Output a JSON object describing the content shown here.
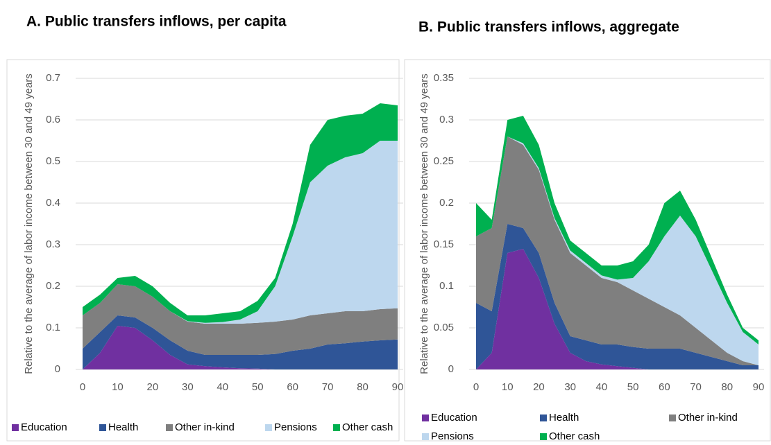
{
  "chart_data": [
    {
      "type": "stacked-area",
      "title": "A. Public transfers inflows, per capita",
      "y_label": "Relative to the average of labor income between 30 and 49 years",
      "x": [
        0,
        5,
        10,
        15,
        20,
        25,
        30,
        35,
        40,
        45,
        50,
        55,
        60,
        65,
        70,
        75,
        80,
        85,
        90
      ],
      "xlim": [
        0,
        90
      ],
      "xticks": [
        0,
        10,
        20,
        30,
        40,
        50,
        60,
        70,
        80,
        90
      ],
      "ylim": [
        0,
        0.7
      ],
      "yticks": [
        0,
        0.1,
        0.2,
        0.3,
        0.4,
        0.5,
        0.6,
        0.7
      ],
      "grid": true,
      "series": [
        {
          "name": "Education",
          "color": "#7030a0",
          "values": [
            0,
            0.04,
            0.105,
            0.1,
            0.07,
            0.035,
            0.012,
            0.008,
            0.005,
            0.003,
            0.002,
            0,
            0,
            0,
            0,
            0,
            0,
            0,
            0
          ]
        },
        {
          "name": "Health",
          "color": "#2f5597",
          "values": [
            0.05,
            0.05,
            0.025,
            0.025,
            0.03,
            0.035,
            0.033,
            0.027,
            0.03,
            0.032,
            0.033,
            0.037,
            0.045,
            0.05,
            0.06,
            0.063,
            0.067,
            0.07,
            0.072
          ]
        },
        {
          "name": "Other in-kind",
          "color": "#7f7f7f",
          "values": [
            0.08,
            0.07,
            0.075,
            0.075,
            0.075,
            0.07,
            0.07,
            0.075,
            0.075,
            0.075,
            0.077,
            0.078,
            0.075,
            0.08,
            0.075,
            0.077,
            0.073,
            0.075,
            0.075
          ]
        },
        {
          "name": "Pensions",
          "color": "#bdd7ee",
          "values": [
            0,
            0,
            0,
            0,
            0,
            0,
            0.001,
            0.002,
            0.004,
            0.01,
            0.028,
            0.085,
            0.2,
            0.32,
            0.355,
            0.37,
            0.38,
            0.405,
            0.403
          ]
        },
        {
          "name": "Other cash",
          "color": "#00b050",
          "values": [
            0.02,
            0.02,
            0.015,
            0.025,
            0.025,
            0.02,
            0.014,
            0.018,
            0.021,
            0.02,
            0.025,
            0.02,
            0.03,
            0.09,
            0.11,
            0.1,
            0.095,
            0.09,
            0.085
          ]
        }
      ]
    },
    {
      "type": "stacked-area",
      "title": "B. Public transfers inflows, aggregate",
      "y_label": "Relative to the average of labor income between 30 and 49 years",
      "x": [
        0,
        5,
        10,
        15,
        20,
        25,
        30,
        35,
        40,
        45,
        50,
        55,
        60,
        65,
        70,
        75,
        80,
        85,
        90
      ],
      "xlim": [
        0,
        90
      ],
      "xticks": [
        0,
        10,
        20,
        30,
        40,
        50,
        60,
        70,
        80,
        90
      ],
      "ylim": [
        0,
        0.35
      ],
      "yticks": [
        0,
        0.05,
        0.1,
        0.15,
        0.2,
        0.25,
        0.3,
        0.35
      ],
      "grid": true,
      "series": [
        {
          "name": "Education",
          "color": "#7030a0",
          "values": [
            0,
            0.02,
            0.14,
            0.145,
            0.11,
            0.055,
            0.02,
            0.01,
            0.006,
            0.004,
            0.002,
            0,
            0,
            0,
            0,
            0,
            0,
            0,
            0
          ]
        },
        {
          "name": "Health",
          "color": "#2f5597",
          "values": [
            0.08,
            0.05,
            0.035,
            0.025,
            0.03,
            0.025,
            0.02,
            0.025,
            0.024,
            0.026,
            0.025,
            0.025,
            0.025,
            0.025,
            0.02,
            0.015,
            0.01,
            0.005,
            0.005
          ]
        },
        {
          "name": "Other in-kind",
          "color": "#7f7f7f",
          "values": [
            0.08,
            0.1,
            0.105,
            0.1,
            0.1,
            0.1,
            0.1,
            0.09,
            0.08,
            0.075,
            0.068,
            0.06,
            0.05,
            0.04,
            0.03,
            0.02,
            0.01,
            0.005,
            0
          ]
        },
        {
          "name": "Pensions",
          "color": "#bdd7ee",
          "values": [
            0,
            0,
            0,
            0.002,
            0.002,
            0.002,
            0.003,
            0.003,
            0.003,
            0.003,
            0.015,
            0.045,
            0.085,
            0.12,
            0.11,
            0.085,
            0.06,
            0.035,
            0.025
          ]
        },
        {
          "name": "Other cash",
          "color": "#00b050",
          "values": [
            0.04,
            0.01,
            0.02,
            0.033,
            0.028,
            0.018,
            0.012,
            0.012,
            0.012,
            0.017,
            0.02,
            0.02,
            0.04,
            0.03,
            0.02,
            0.015,
            0.01,
            0.005,
            0.005
          ]
        }
      ]
    }
  ]
}
